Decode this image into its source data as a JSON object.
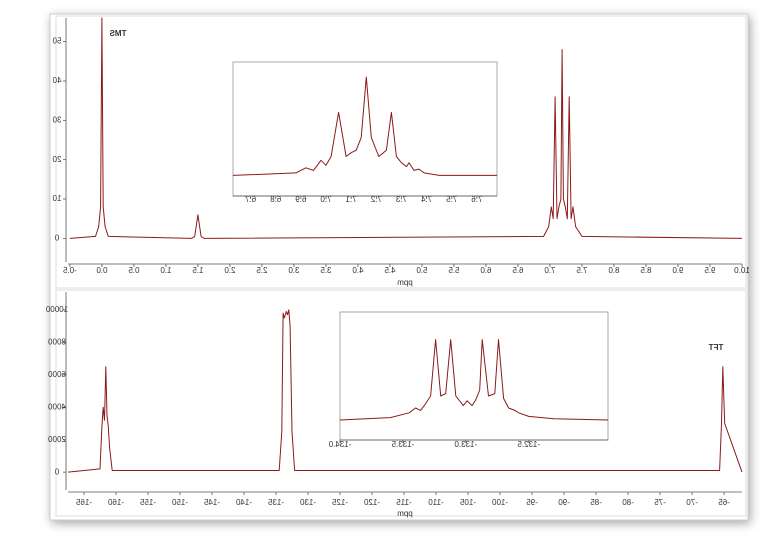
{
  "chart_data": [
    {
      "type": "line",
      "xlabel": "ppm",
      "annotation": "TMS",
      "color": "#8b1a1a",
      "xlim": [
        -0.53,
        10.0
      ],
      "ylim": [
        -6,
        56
      ],
      "xticks": [
        -0.5,
        {
          "value": 0,
          "label": "0.0"
        },
        0.5,
        {
          "value": 1,
          "label": "1.0"
        },
        1.5,
        {
          "value": 2,
          "label": "2.0"
        },
        2.5,
        {
          "value": 3,
          "label": "3.0"
        },
        3.5,
        {
          "value": 4,
          "label": "4.0"
        },
        4.5,
        {
          "value": 5,
          "label": "5.0"
        },
        5.5,
        {
          "value": 6,
          "label": "6.0"
        },
        6.5,
        {
          "value": 7,
          "label": "7.0"
        },
        7.5,
        {
          "value": 8,
          "label": "8.0"
        },
        8.5,
        {
          "value": 9,
          "label": "9.0"
        },
        9.5,
        {
          "value": 10,
          "label": "10.0"
        }
      ],
      "yticks": [
        0,
        10,
        20,
        30,
        40,
        50
      ],
      "x": [
        -0.5,
        -0.1,
        -0.05,
        -0.02,
        0.0,
        0.02,
        0.05,
        0.1,
        1.4,
        1.45,
        1.5,
        1.55,
        1.6,
        6.9,
        6.98,
        7.02,
        7.05,
        7.08,
        7.11,
        7.14,
        7.17,
        7.19,
        7.21,
        7.24,
        7.27,
        7.3,
        7.33,
        7.36,
        7.4,
        7.5,
        10.0
      ],
      "values": [
        0,
        0.5,
        3,
        8,
        56,
        8,
        3,
        0.5,
        0,
        0.5,
        6,
        0.5,
        0,
        0.5,
        3,
        8,
        5,
        36,
        5,
        8,
        10,
        48,
        10,
        8,
        5,
        36,
        5,
        8,
        3,
        0.5,
        0
      ]
    },
    {
      "type": "line",
      "color": "#8b1a1a",
      "xlim": [
        6.63,
        7.68
      ],
      "ylim": [
        0,
        1
      ],
      "xticks": [
        6.7,
        6.8,
        6.9,
        {
          "value": 7,
          "label": "7.0"
        },
        7.1,
        7.2,
        7.3,
        7.4,
        7.5,
        7.6
      ],
      "x": [
        6.63,
        6.88,
        6.92,
        6.95,
        6.98,
        7.0,
        7.02,
        7.05,
        7.08,
        7.1,
        7.12,
        7.14,
        7.16,
        7.18,
        7.21,
        7.24,
        7.26,
        7.28,
        7.3,
        7.32,
        7.33,
        7.35,
        7.37,
        7.39,
        7.45,
        7.68
      ],
      "values": [
        0.1,
        0.12,
        0.16,
        0.14,
        0.22,
        0.18,
        0.25,
        0.6,
        0.25,
        0.28,
        0.3,
        0.4,
        0.88,
        0.4,
        0.25,
        0.3,
        0.6,
        0.25,
        0.2,
        0.17,
        0.2,
        0.14,
        0.15,
        0.12,
        0.1,
        0.1
      ]
    },
    {
      "type": "line",
      "xlabel": "ppm",
      "annotation": "TFT",
      "color": "#8b1a1a",
      "xlim": [
        -167.5,
        -62.2
      ],
      "ylim": [
        -1100,
        11100
      ],
      "xticks": [
        -165,
        -160,
        -155,
        -150,
        -145,
        -140,
        -135,
        -130,
        -125,
        -120,
        -115,
        -110,
        -105,
        -100,
        -95,
        -90,
        -85,
        -80,
        -75,
        -70,
        -65
      ],
      "yticks": [
        0,
        2000,
        4000,
        6000,
        8000,
        10000
      ],
      "x": [
        -167.5,
        -162.5,
        -162.2,
        -162.0,
        -161.8,
        -161.6,
        -161.4,
        -161.2,
        -161.0,
        -160.6,
        -134.5,
        -134.1,
        -133.9,
        -133.7,
        -133.4,
        -133.2,
        -133.0,
        -132.8,
        -132.5,
        -132.1,
        -65.7,
        -65.4,
        -65.2,
        -64.9,
        -62.2
      ],
      "values": [
        0,
        200,
        2800,
        4000,
        3200,
        6500,
        3500,
        2800,
        1500,
        100,
        100,
        2500,
        9800,
        9500,
        9900,
        9700,
        10000,
        9000,
        2500,
        100,
        100,
        3000,
        6500,
        3000,
        0
      ]
    },
    {
      "type": "line",
      "color": "#8b1a1a",
      "xlim": [
        -134.0,
        -131.87
      ],
      "ylim": [
        0,
        1
      ],
      "xticks": [
        {
          "value": -134,
          "label": "-134.0"
        },
        -133.5,
        {
          "value": -133,
          "label": "-133.0"
        },
        -132.5
      ],
      "x": [
        -134.0,
        -133.6,
        -133.45,
        -133.4,
        -133.36,
        -133.33,
        -133.28,
        -133.24,
        -133.2,
        -133.16,
        -133.12,
        -133.08,
        -133.02,
        -132.99,
        -132.95,
        -132.92,
        -132.89,
        -132.87,
        -132.82,
        -132.77,
        -132.74,
        -132.7,
        -132.66,
        -132.61,
        -132.58,
        -132.5,
        -132.3,
        -131.87
      ],
      "values": [
        0.1,
        0.12,
        0.16,
        0.2,
        0.18,
        0.22,
        0.3,
        0.77,
        0.3,
        0.32,
        0.77,
        0.3,
        0.22,
        0.26,
        0.22,
        0.27,
        0.35,
        0.77,
        0.3,
        0.32,
        0.77,
        0.28,
        0.2,
        0.18,
        0.16,
        0.13,
        0.11,
        0.1
      ]
    }
  ]
}
